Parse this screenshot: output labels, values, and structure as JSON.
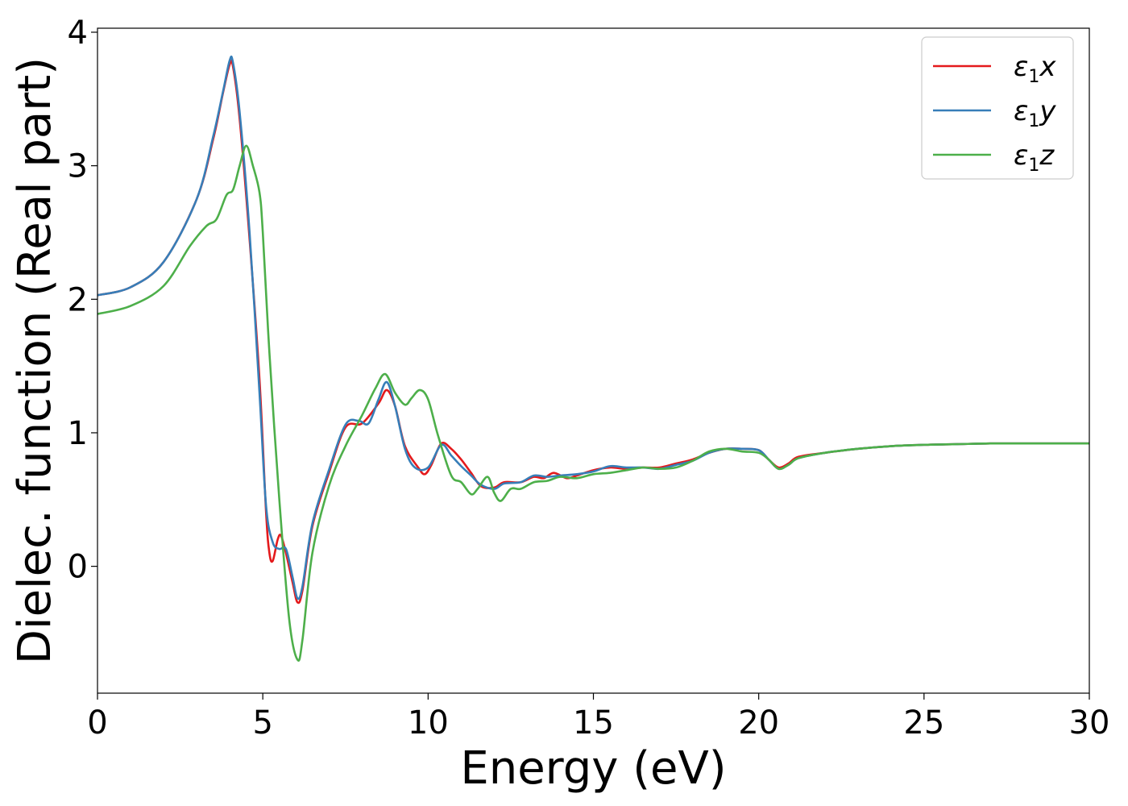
{
  "chart_data": {
    "type": "line",
    "xlabel": "Energy (eV)",
    "ylabel": "Dielec. function (Real part)",
    "xlim": [
      0,
      30
    ],
    "ylim": [
      -0.95,
      4.03
    ],
    "xticks": [
      0,
      5,
      10,
      15,
      20,
      25,
      30
    ],
    "yticks": [
      0,
      1,
      2,
      3,
      4
    ],
    "grid": false,
    "legend_position": "top-right",
    "series": [
      {
        "name": "ε1x",
        "legend": {
          "symbol": "ε",
          "sub": "1",
          "var": "x"
        },
        "color": "#e41a1c",
        "points": [
          [
            0,
            2.03
          ],
          [
            1,
            2.09
          ],
          [
            2,
            2.28
          ],
          [
            3,
            2.75
          ],
          [
            3.5,
            3.2
          ],
          [
            3.8,
            3.55
          ],
          [
            4.0,
            3.76
          ],
          [
            4.1,
            3.74
          ],
          [
            4.3,
            3.35
          ],
          [
            4.6,
            2.45
          ],
          [
            4.9,
            1.4
          ],
          [
            5.1,
            0.4
          ],
          [
            5.2,
            0.1
          ],
          [
            5.3,
            0.04
          ],
          [
            5.45,
            0.2
          ],
          [
            5.55,
            0.23
          ],
          [
            5.7,
            0.1
          ],
          [
            5.9,
            -0.12
          ],
          [
            6.05,
            -0.27
          ],
          [
            6.2,
            -0.18
          ],
          [
            6.5,
            0.3
          ],
          [
            7.0,
            0.7
          ],
          [
            7.5,
            1.04
          ],
          [
            8.0,
            1.07
          ],
          [
            8.5,
            1.22
          ],
          [
            8.75,
            1.32
          ],
          [
            9.0,
            1.2
          ],
          [
            9.3,
            0.9
          ],
          [
            9.7,
            0.74
          ],
          [
            9.9,
            0.69
          ],
          [
            10.1,
            0.76
          ],
          [
            10.4,
            0.92
          ],
          [
            10.7,
            0.88
          ],
          [
            11.0,
            0.8
          ],
          [
            11.3,
            0.7
          ],
          [
            11.6,
            0.6
          ],
          [
            12.0,
            0.59
          ],
          [
            12.3,
            0.63
          ],
          [
            12.8,
            0.63
          ],
          [
            13.2,
            0.67
          ],
          [
            13.5,
            0.66
          ],
          [
            13.8,
            0.7
          ],
          [
            14.2,
            0.66
          ],
          [
            14.5,
            0.68
          ],
          [
            15.0,
            0.72
          ],
          [
            15.5,
            0.74
          ],
          [
            16.0,
            0.73
          ],
          [
            16.5,
            0.74
          ],
          [
            17.0,
            0.74
          ],
          [
            17.5,
            0.77
          ],
          [
            18.0,
            0.8
          ],
          [
            18.5,
            0.85
          ],
          [
            19.0,
            0.88
          ],
          [
            19.5,
            0.88
          ],
          [
            20.0,
            0.87
          ],
          [
            20.3,
            0.8
          ],
          [
            20.6,
            0.74
          ],
          [
            20.9,
            0.77
          ],
          [
            21.2,
            0.82
          ],
          [
            22,
            0.85
          ],
          [
            23,
            0.88
          ],
          [
            24,
            0.9
          ],
          [
            25,
            0.91
          ],
          [
            26,
            0.915
          ],
          [
            27,
            0.92
          ],
          [
            28,
            0.92
          ],
          [
            29,
            0.92
          ],
          [
            30,
            0.92
          ]
        ]
      },
      {
        "name": "ε1y",
        "legend": {
          "symbol": "ε",
          "sub": "1",
          "var": "y"
        },
        "color": "#377eb8",
        "points": [
          [
            0,
            2.03
          ],
          [
            1,
            2.09
          ],
          [
            2,
            2.28
          ],
          [
            3,
            2.75
          ],
          [
            3.5,
            3.22
          ],
          [
            3.8,
            3.56
          ],
          [
            4.0,
            3.79
          ],
          [
            4.1,
            3.77
          ],
          [
            4.3,
            3.4
          ],
          [
            4.6,
            2.5
          ],
          [
            4.9,
            1.3
          ],
          [
            5.1,
            0.45
          ],
          [
            5.3,
            0.18
          ],
          [
            5.5,
            0.13
          ],
          [
            5.7,
            0.13
          ],
          [
            5.9,
            -0.08
          ],
          [
            6.05,
            -0.24
          ],
          [
            6.2,
            -0.15
          ],
          [
            6.5,
            0.32
          ],
          [
            7.0,
            0.72
          ],
          [
            7.5,
            1.06
          ],
          [
            7.9,
            1.09
          ],
          [
            8.2,
            1.07
          ],
          [
            8.5,
            1.25
          ],
          [
            8.75,
            1.38
          ],
          [
            9.0,
            1.2
          ],
          [
            9.3,
            0.88
          ],
          [
            9.6,
            0.74
          ],
          [
            10.0,
            0.74
          ],
          [
            10.4,
            0.91
          ],
          [
            10.7,
            0.83
          ],
          [
            11.0,
            0.75
          ],
          [
            11.3,
            0.68
          ],
          [
            11.6,
            0.61
          ],
          [
            12.0,
            0.58
          ],
          [
            12.3,
            0.62
          ],
          [
            12.8,
            0.63
          ],
          [
            13.2,
            0.68
          ],
          [
            13.6,
            0.67
          ],
          [
            14.0,
            0.68
          ],
          [
            14.5,
            0.69
          ],
          [
            15.0,
            0.71
          ],
          [
            15.5,
            0.75
          ],
          [
            16.0,
            0.74
          ],
          [
            16.5,
            0.74
          ],
          [
            17.0,
            0.73
          ],
          [
            17.5,
            0.76
          ],
          [
            18.0,
            0.79
          ],
          [
            18.5,
            0.85
          ],
          [
            19.0,
            0.88
          ],
          [
            19.5,
            0.88
          ],
          [
            20.0,
            0.87
          ],
          [
            20.3,
            0.8
          ],
          [
            20.6,
            0.73
          ],
          [
            20.9,
            0.76
          ],
          [
            21.2,
            0.81
          ],
          [
            22,
            0.85
          ],
          [
            23,
            0.88
          ],
          [
            24,
            0.9
          ],
          [
            25,
            0.91
          ],
          [
            26,
            0.915
          ],
          [
            27,
            0.92
          ],
          [
            28,
            0.92
          ],
          [
            29,
            0.92
          ],
          [
            30,
            0.92
          ]
        ]
      },
      {
        "name": "ε1z",
        "legend": {
          "symbol": "ε",
          "sub": "1",
          "var": "z"
        },
        "color": "#4daf4a",
        "points": [
          [
            0,
            1.89
          ],
          [
            1,
            1.95
          ],
          [
            2,
            2.1
          ],
          [
            2.8,
            2.4
          ],
          [
            3.3,
            2.55
          ],
          [
            3.6,
            2.6
          ],
          [
            3.9,
            2.78
          ],
          [
            4.1,
            2.82
          ],
          [
            4.3,
            3.0
          ],
          [
            4.5,
            3.15
          ],
          [
            4.7,
            3.0
          ],
          [
            4.9,
            2.8
          ],
          [
            5.0,
            2.5
          ],
          [
            5.2,
            1.6
          ],
          [
            5.5,
            0.5
          ],
          [
            5.8,
            -0.4
          ],
          [
            6.05,
            -0.7
          ],
          [
            6.2,
            -0.55
          ],
          [
            6.5,
            0.1
          ],
          [
            7.0,
            0.6
          ],
          [
            7.5,
            0.9
          ],
          [
            8.0,
            1.13
          ],
          [
            8.4,
            1.33
          ],
          [
            8.7,
            1.44
          ],
          [
            9.0,
            1.3
          ],
          [
            9.3,
            1.21
          ],
          [
            9.5,
            1.26
          ],
          [
            9.75,
            1.32
          ],
          [
            10.0,
            1.25
          ],
          [
            10.3,
            0.98
          ],
          [
            10.7,
            0.68
          ],
          [
            11.0,
            0.63
          ],
          [
            11.3,
            0.54
          ],
          [
            11.5,
            0.58
          ],
          [
            11.8,
            0.67
          ],
          [
            12.0,
            0.55
          ],
          [
            12.2,
            0.49
          ],
          [
            12.5,
            0.58
          ],
          [
            12.8,
            0.58
          ],
          [
            13.2,
            0.63
          ],
          [
            13.6,
            0.64
          ],
          [
            14.0,
            0.67
          ],
          [
            14.5,
            0.66
          ],
          [
            15.0,
            0.69
          ],
          [
            15.5,
            0.7
          ],
          [
            16.0,
            0.72
          ],
          [
            16.5,
            0.74
          ],
          [
            17.0,
            0.73
          ],
          [
            17.5,
            0.74
          ],
          [
            18.0,
            0.79
          ],
          [
            18.5,
            0.86
          ],
          [
            19.0,
            0.88
          ],
          [
            19.5,
            0.86
          ],
          [
            20.0,
            0.85
          ],
          [
            20.3,
            0.8
          ],
          [
            20.6,
            0.73
          ],
          [
            20.9,
            0.76
          ],
          [
            21.2,
            0.81
          ],
          [
            22,
            0.85
          ],
          [
            23,
            0.88
          ],
          [
            24,
            0.9
          ],
          [
            25,
            0.91
          ],
          [
            26,
            0.915
          ],
          [
            27,
            0.92
          ],
          [
            28,
            0.92
          ],
          [
            29,
            0.92
          ],
          [
            30,
            0.92
          ]
        ]
      }
    ]
  }
}
